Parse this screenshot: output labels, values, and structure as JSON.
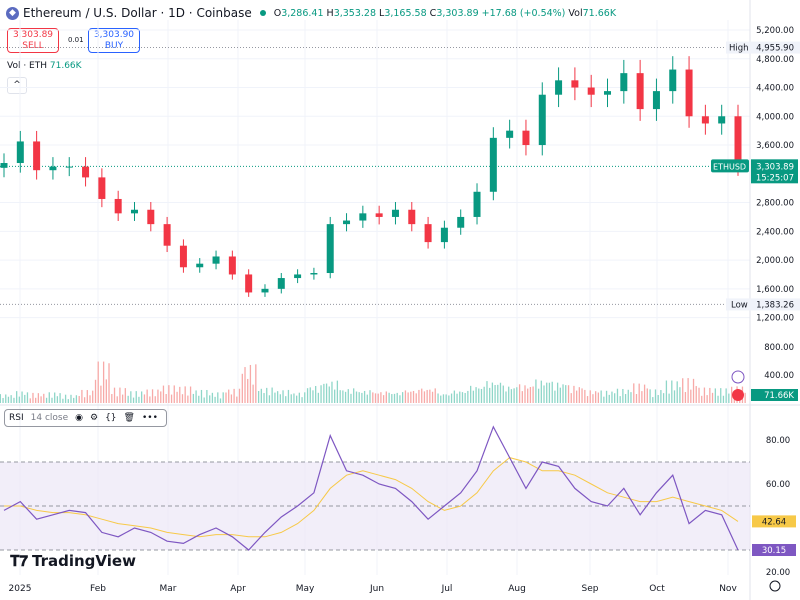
{
  "header": {
    "symbol": "Ethereum / U.S. Dollar · 1D · Coinbase",
    "o_label": "O",
    "open": "3,286.41",
    "h_label": "H",
    "high": "3,353.28",
    "l_label": "L",
    "low": "3,165.58",
    "c_label": "C",
    "close": "3,303.89",
    "change": "+17.68 (+0.54%)",
    "vol_label": "Vol",
    "vol": "71.66K"
  },
  "trade": {
    "sell_price": "3,303.89",
    "sell_label": "SELL",
    "spread": "0.01",
    "buy_price": "3,303.90",
    "buy_label": "BUY"
  },
  "volume_legend": {
    "label": "Vol · ETH",
    "value": "71.66K"
  },
  "price_axis": {
    "ticks": [
      "5,200.00",
      "4,800.00",
      "4,400.00",
      "4,000.00",
      "3,600.00",
      "2,800.00",
      "2,400.00",
      "2,000.00",
      "1,600.00",
      "1,200.00",
      "800.00",
      "400.00"
    ],
    "high_label": "High",
    "high_value": "4,955.90",
    "low_label": "Low",
    "low_value": "1,383.26",
    "symbol_tag": "ETHUSD",
    "last_price": "3,303.89",
    "countdown": "15:25:07",
    "vol_tag": "71.66K"
  },
  "rsi": {
    "label": "RSI",
    "params": "14 close",
    "ticks": [
      "80.00",
      "60.00",
      "20.00"
    ],
    "rsi_value": "30.15",
    "ma_value": "42.64"
  },
  "x_axis": [
    "2025",
    "Feb",
    "Mar",
    "Apr",
    "May",
    "Jun",
    "Jul",
    "Aug",
    "Sep",
    "Oct",
    "Nov"
  ],
  "brand": "TradingView",
  "colors": {
    "up": "#089981",
    "down": "#f23645",
    "rsi": "#7e57c2",
    "rsi_ma": "#f7c948",
    "band": "#ede7f6"
  },
  "chart_data": {
    "type": "candlestick",
    "x_unit": "week starting",
    "dates": [
      "2025-01-01",
      "2025-01-06",
      "2025-01-10",
      "2025-01-15",
      "2025-01-20",
      "2025-01-27",
      "2025-02-03",
      "2025-02-10",
      "2025-02-17",
      "2025-02-24",
      "2025-03-03",
      "2025-03-10",
      "2025-03-17",
      "2025-03-24",
      "2025-03-31",
      "2025-04-07",
      "2025-04-14",
      "2025-04-21",
      "2025-04-28",
      "2025-05-05",
      "2025-05-12",
      "2025-05-19",
      "2025-05-26",
      "2025-06-02",
      "2025-06-09",
      "2025-06-16",
      "2025-06-23",
      "2025-06-30",
      "2025-07-07",
      "2025-07-14",
      "2025-07-21",
      "2025-07-28",
      "2025-08-04",
      "2025-08-11",
      "2025-08-18",
      "2025-08-25",
      "2025-09-01",
      "2025-09-08",
      "2025-09-15",
      "2025-09-22",
      "2025-09-29",
      "2025-10-06",
      "2025-10-13",
      "2025-10-20",
      "2025-10-27",
      "2025-11-03"
    ],
    "close": [
      3350,
      3650,
      3250,
      3300,
      3300,
      3150,
      2850,
      2650,
      2700,
      2500,
      2200,
      1900,
      1950,
      2050,
      1800,
      1550,
      1600,
      1750,
      1800,
      1820,
      2500,
      2550,
      2650,
      2600,
      2700,
      2500,
      2250,
      2450,
      2600,
      2950,
      3700,
      3800,
      3600,
      4300,
      4500,
      4400,
      4300,
      4350,
      4600,
      4100,
      4350,
      4650,
      4000,
      3900,
      4000,
      3304
    ],
    "volume_k": [
      150,
      200,
      170,
      180,
      140,
      220,
      700,
      260,
      200,
      230,
      300,
      280,
      220,
      180,
      240,
      650,
      260,
      220,
      180,
      300,
      380,
      250,
      220,
      200,
      190,
      230,
      260,
      170,
      220,
      300,
      380,
      300,
      320,
      400,
      360,
      300,
      220,
      210,
      240,
      330,
      230,
      380,
      420,
      260,
      250,
      280
    ],
    "rsi": [
      48,
      52,
      44,
      46,
      48,
      47,
      38,
      36,
      40,
      38,
      34,
      33,
      37,
      40,
      36,
      30,
      38,
      45,
      50,
      56,
      82,
      66,
      64,
      60,
      58,
      52,
      44,
      50,
      56,
      66,
      86,
      72,
      58,
      70,
      68,
      58,
      52,
      50,
      58,
      46,
      56,
      64,
      42,
      48,
      46,
      30
    ],
    "rsi_ma": [
      50,
      50,
      48,
      47,
      47,
      46,
      44,
      42,
      41,
      40,
      38,
      37,
      36,
      37,
      37,
      36,
      36,
      38,
      42,
      48,
      58,
      64,
      66,
      64,
      62,
      58,
      52,
      48,
      50,
      56,
      66,
      72,
      70,
      66,
      66,
      64,
      60,
      56,
      54,
      52,
      52,
      54,
      52,
      50,
      48,
      43
    ],
    "price_range": [
      1200,
      5200
    ],
    "rsi_range": [
      20,
      90
    ],
    "rsi_bands": [
      30,
      70
    ],
    "high": 4955.9,
    "low": 1383.26
  }
}
